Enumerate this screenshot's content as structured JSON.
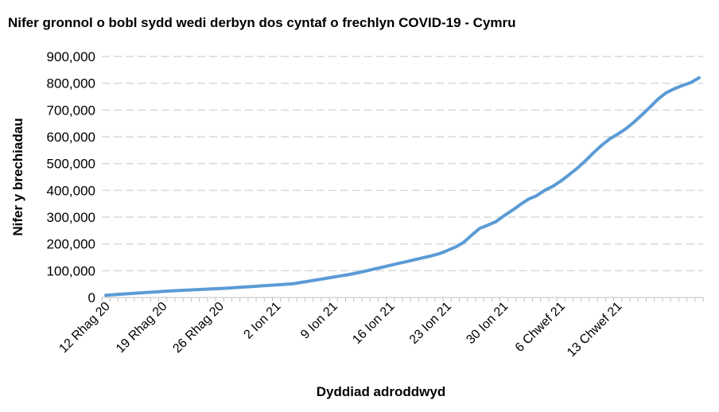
{
  "chart_data": {
    "type": "line",
    "title": "Nifer gronnol o bobl sydd wedi derbyn dos cyntaf o frechlyn COVID-19 - Cymru",
    "xlabel": "Dyddiad adroddwyd",
    "ylabel": "Nifer y brechiadau",
    "ylim": [
      0,
      900000
    ],
    "yticks": [
      0,
      100000,
      200000,
      300000,
      400000,
      500000,
      600000,
      700000,
      800000,
      900000
    ],
    "ytick_labels": [
      "0",
      "100,000",
      "200,000",
      "300,000",
      "400,000",
      "500,000",
      "600,000",
      "700,000",
      "800,000",
      "900,000"
    ],
    "x_tick_labels": [
      "12 Rhag 20",
      "19 Rhag 20",
      "26 Rhag 20",
      "2 Ion 21",
      "9 Ion 21",
      "16 Ion 21",
      "23 Ion 21",
      "30 Ion 21",
      "6 Chwef 21",
      "13 Chwef 21"
    ],
    "x_label_every": 7,
    "grid": "horizontal dashed",
    "legend": "none",
    "line_color": "#5b9bd5",
    "series": [
      {
        "values": [
          8000,
          10500,
          12500,
          14500,
          16500,
          18500,
          20500,
          22500,
          24500,
          26000,
          27500,
          29000,
          30500,
          32000,
          33500,
          35000,
          37000,
          39000,
          41000,
          43000,
          45000,
          47000,
          49000,
          51000,
          56000,
          61000,
          66000,
          71000,
          76000,
          81000,
          86000,
          92000,
          99000,
          106000,
          113000,
          120000,
          127000,
          134000,
          141000,
          148000,
          155000,
          163000,
          175000,
          188000,
          205000,
          232000,
          258000,
          270000,
          283000,
          305000,
          325000,
          347000,
          367000,
          380000,
          400000,
          415000,
          435000,
          458000,
          482000,
          510000,
          540000,
          568000,
          592000,
          610000,
          630000,
          655000,
          683000,
          712000,
          742000,
          765000,
          780000,
          792000,
          803000,
          820000
        ]
      }
    ]
  }
}
